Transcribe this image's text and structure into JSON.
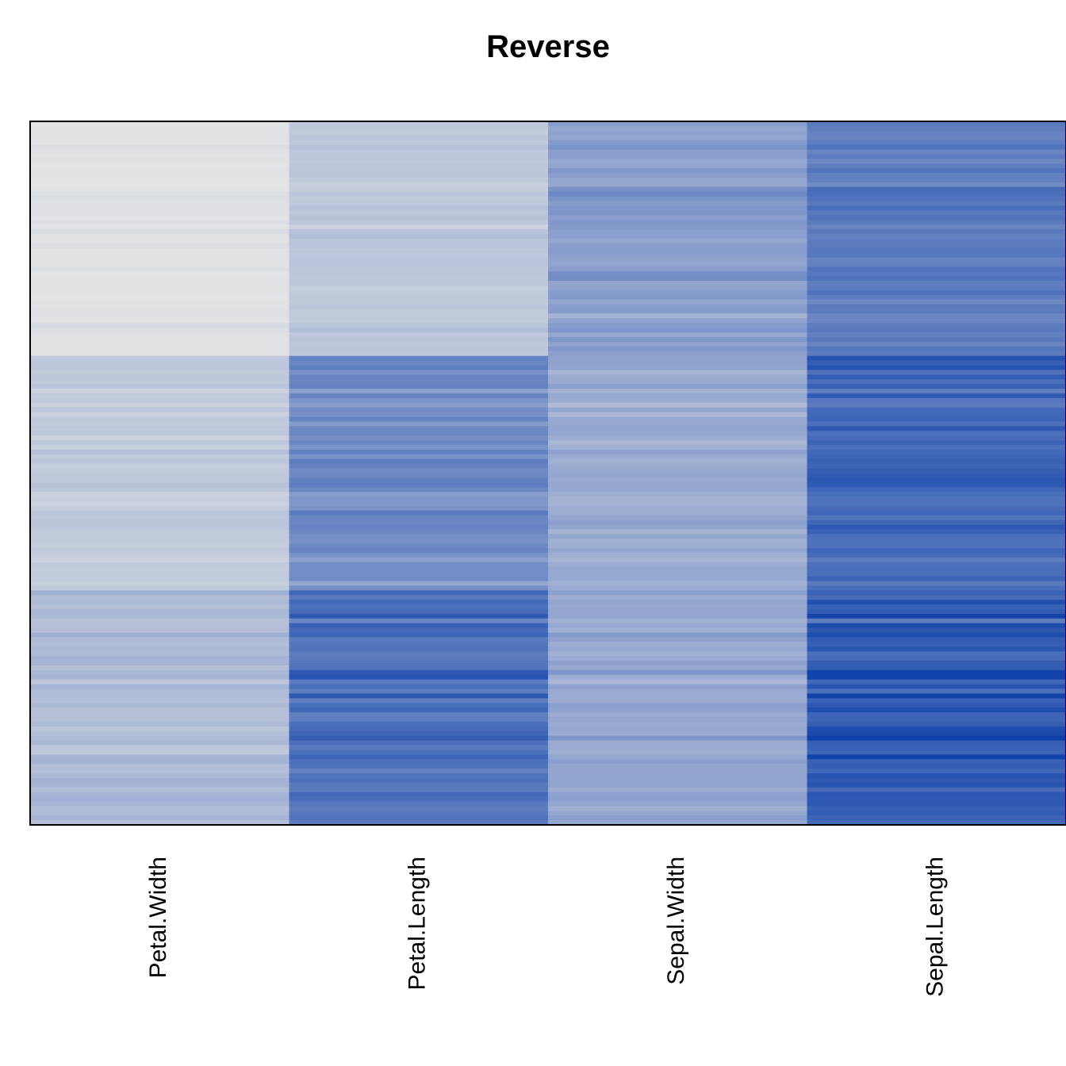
{
  "chart_data": {
    "type": "heatmap",
    "title": "Reverse",
    "xlabel": "",
    "ylabel": "",
    "columns": [
      "Petal.Width",
      "Petal.Length",
      "Sepal.Width",
      "Sepal.Length"
    ],
    "row_count": 150,
    "value_range": [
      0,
      8
    ],
    "color_low": "#e6e6e6",
    "color_high": "#0a3da8",
    "grid": false,
    "legend": "none",
    "values": {
      "Petal.Width": [
        0.2,
        0.2,
        0.2,
        0.2,
        0.2,
        0.4,
        0.3,
        0.2,
        0.2,
        0.1,
        0.2,
        0.2,
        0.1,
        0.1,
        0.2,
        0.4,
        0.4,
        0.3,
        0.3,
        0.3,
        0.2,
        0.4,
        0.2,
        0.5,
        0.2,
        0.2,
        0.4,
        0.2,
        0.2,
        0.2,
        0.2,
        0.4,
        0.1,
        0.2,
        0.2,
        0.2,
        0.2,
        0.1,
        0.2,
        0.2,
        0.3,
        0.3,
        0.2,
        0.6,
        0.4,
        0.3,
        0.2,
        0.2,
        0.2,
        0.2,
        1.4,
        1.5,
        1.5,
        1.3,
        1.5,
        1.3,
        1.6,
        1.0,
        1.3,
        1.4,
        1.0,
        1.5,
        1.0,
        1.4,
        1.3,
        1.4,
        1.5,
        1.0,
        1.5,
        1.1,
        1.8,
        1.3,
        1.5,
        1.2,
        1.3,
        1.4,
        1.4,
        1.7,
        1.5,
        1.0,
        1.1,
        1.0,
        1.2,
        1.6,
        1.5,
        1.6,
        1.5,
        1.3,
        1.3,
        1.3,
        1.2,
        1.4,
        1.2,
        1.0,
        1.3,
        1.2,
        1.3,
        1.3,
        1.1,
        1.3,
        2.5,
        1.9,
        2.1,
        1.8,
        2.2,
        2.1,
        1.7,
        1.8,
        1.8,
        2.5,
        2.0,
        1.9,
        2.1,
        2.0,
        2.4,
        2.3,
        1.8,
        2.2,
        2.3,
        1.5,
        2.3,
        2.0,
        2.0,
        1.8,
        2.1,
        1.8,
        1.8,
        1.8,
        2.1,
        1.6,
        1.9,
        2.0,
        2.2,
        1.5,
        1.4,
        2.3,
        2.4,
        1.8,
        1.8,
        2.1,
        2.4,
        2.3,
        1.9,
        2.3,
        2.5,
        2.3,
        1.9,
        2.0,
        2.3,
        1.8
      ],
      "Petal.Length": [
        1.4,
        1.4,
        1.3,
        1.5,
        1.4,
        1.7,
        1.4,
        1.5,
        1.4,
        1.5,
        1.5,
        1.6,
        1.4,
        1.1,
        1.2,
        1.5,
        1.3,
        1.4,
        1.7,
        1.5,
        1.7,
        1.5,
        1.0,
        1.7,
        1.9,
        1.6,
        1.6,
        1.5,
        1.4,
        1.6,
        1.6,
        1.5,
        1.5,
        1.4,
        1.5,
        1.2,
        1.3,
        1.4,
        1.3,
        1.5,
        1.3,
        1.3,
        1.3,
        1.6,
        1.9,
        1.4,
        1.6,
        1.4,
        1.5,
        1.4,
        4.7,
        4.5,
        4.9,
        4.0,
        4.6,
        4.5,
        4.7,
        3.3,
        4.6,
        3.9,
        3.5,
        4.2,
        4.0,
        4.7,
        3.6,
        4.4,
        4.5,
        4.1,
        4.5,
        3.9,
        4.8,
        4.0,
        4.9,
        4.7,
        4.3,
        4.4,
        4.8,
        5.0,
        4.5,
        3.5,
        3.8,
        3.7,
        3.9,
        5.1,
        4.5,
        4.5,
        4.7,
        4.4,
        4.1,
        4.0,
        4.4,
        4.6,
        4.0,
        3.3,
        4.2,
        4.2,
        4.2,
        4.3,
        3.0,
        4.1,
        6.0,
        5.1,
        5.9,
        5.6,
        5.8,
        6.6,
        4.5,
        6.3,
        5.8,
        6.1,
        5.1,
        5.3,
        5.5,
        5.0,
        5.1,
        5.3,
        5.5,
        6.7,
        6.9,
        5.0,
        5.7,
        4.9,
        6.7,
        4.9,
        5.7,
        6.0,
        4.8,
        4.9,
        5.6,
        5.8,
        6.1,
        6.4,
        5.6,
        5.1,
        5.6,
        6.1,
        5.6,
        5.5,
        4.8,
        5.4,
        5.6,
        5.1,
        5.1,
        5.9,
        5.7,
        5.2,
        5.0,
        5.2,
        5.4,
        5.1
      ],
      "Sepal.Width": [
        3.5,
        3.0,
        3.2,
        3.1,
        3.6,
        3.9,
        3.4,
        3.4,
        2.9,
        3.1,
        3.7,
        3.4,
        3.0,
        3.0,
        4.0,
        4.4,
        3.9,
        3.5,
        3.8,
        3.8,
        3.4,
        3.7,
        3.6,
        3.3,
        3.4,
        3.0,
        3.4,
        3.5,
        3.4,
        3.2,
        3.1,
        3.4,
        4.1,
        4.2,
        3.1,
        3.2,
        3.5,
        3.6,
        3.0,
        3.4,
        3.5,
        2.3,
        3.2,
        3.5,
        3.8,
        3.0,
        3.8,
        3.2,
        3.7,
        3.3,
        3.2,
        3.2,
        3.1,
        2.3,
        2.8,
        2.8,
        3.3,
        2.4,
        2.9,
        2.7,
        2.0,
        3.0,
        2.2,
        2.9,
        2.9,
        3.1,
        3.0,
        2.7,
        2.2,
        2.5,
        3.2,
        2.8,
        2.5,
        2.8,
        2.9,
        3.0,
        2.8,
        3.0,
        2.9,
        2.6,
        2.4,
        2.4,
        2.7,
        2.7,
        3.0,
        3.4,
        3.1,
        2.3,
        3.0,
        2.5,
        2.6,
        3.0,
        2.6,
        2.3,
        2.7,
        3.0,
        2.9,
        2.9,
        2.5,
        2.8,
        3.3,
        2.7,
        3.0,
        2.9,
        3.0,
        3.0,
        2.5,
        2.9,
        2.5,
        3.6,
        3.2,
        2.7,
        3.0,
        2.5,
        2.8,
        3.2,
        3.0,
        3.8,
        2.6,
        2.2,
        3.2,
        2.8,
        2.8,
        2.7,
        3.3,
        3.2,
        2.8,
        3.0,
        2.8,
        3.0,
        2.8,
        3.8,
        2.8,
        2.8,
        2.6,
        3.0,
        3.4,
        3.1,
        3.0,
        3.1,
        3.1,
        3.1,
        2.7,
        3.2,
        3.3,
        3.0,
        2.5,
        3.0,
        3.4,
        3.0
      ],
      "Sepal.Length": [
        5.1,
        4.9,
        4.7,
        4.6,
        5.0,
        5.4,
        4.6,
        5.0,
        4.4,
        4.9,
        5.4,
        4.8,
        4.8,
        4.3,
        5.8,
        5.7,
        5.4,
        5.1,
        5.7,
        5.1,
        5.4,
        5.1,
        4.6,
        5.1,
        4.8,
        5.0,
        5.0,
        5.2,
        5.2,
        4.7,
        4.8,
        5.4,
        5.2,
        5.5,
        4.9,
        5.0,
        5.5,
        4.9,
        4.4,
        5.1,
        5.0,
        4.5,
        4.4,
        5.0,
        5.1,
        4.8,
        5.1,
        4.6,
        5.3,
        5.0,
        7.0,
        6.4,
        6.9,
        5.5,
        6.5,
        5.7,
        6.3,
        4.9,
        6.6,
        5.2,
        5.0,
        5.9,
        6.0,
        6.1,
        5.6,
        6.7,
        5.6,
        5.8,
        6.2,
        5.6,
        5.9,
        6.1,
        6.3,
        6.1,
        6.4,
        6.6,
        6.8,
        6.7,
        6.0,
        5.7,
        5.5,
        5.5,
        5.8,
        6.0,
        5.4,
        6.0,
        6.7,
        6.3,
        5.6,
        5.5,
        5.5,
        6.1,
        5.8,
        5.0,
        5.6,
        5.7,
        5.7,
        6.2,
        5.1,
        5.7,
        6.3,
        5.8,
        7.1,
        6.3,
        6.5,
        7.6,
        4.9,
        7.3,
        6.7,
        7.2,
        6.5,
        6.4,
        6.8,
        5.7,
        5.8,
        6.4,
        6.5,
        7.7,
        7.7,
        6.0,
        6.9,
        5.6,
        7.7,
        6.3,
        6.7,
        7.2,
        6.2,
        6.1,
        6.4,
        7.2,
        7.4,
        7.9,
        6.4,
        6.3,
        6.1,
        7.7,
        6.3,
        6.4,
        6.0,
        6.9,
        6.7,
        6.9,
        5.8,
        6.8,
        6.7,
        6.7,
        6.3,
        6.5,
        6.2,
        5.9
      ]
    }
  }
}
